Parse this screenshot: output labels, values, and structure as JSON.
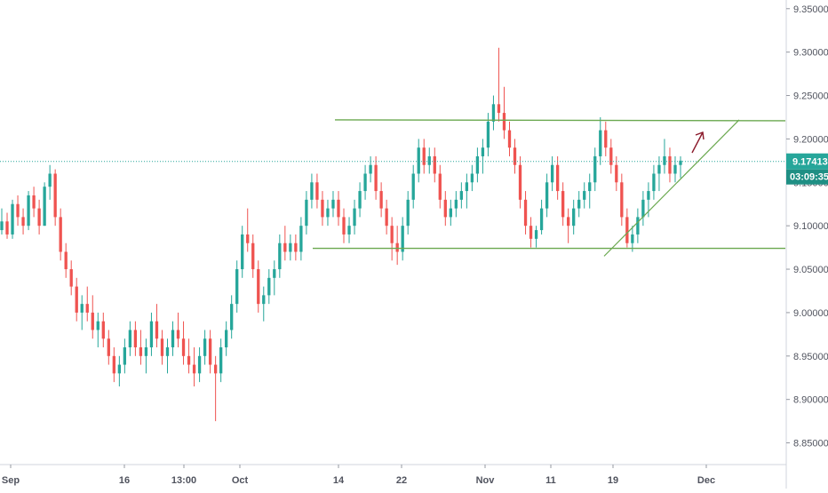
{
  "chart_data": {
    "type": "candlestick",
    "y_axis": {
      "position": "right",
      "range": [
        8.825,
        9.36
      ],
      "ticks": [
        "9.35000",
        "9.30000",
        "9.25000",
        "9.20000",
        "9.15000",
        "9.10000",
        "9.05000",
        "9.00000",
        "8.95000",
        "8.90000",
        "8.85000"
      ]
    },
    "x_axis": {
      "ticks": [
        "Sep",
        "16",
        "13:00",
        "Oct",
        "14",
        "22",
        "Nov",
        "11",
        "19",
        "Dec"
      ]
    },
    "current_price": {
      "value": 9.17413,
      "label": "9.17413",
      "countdown": "03:09:35"
    },
    "grid": false,
    "colors": {
      "up": "#26a69a",
      "down": "#ef5350",
      "resistance": "#6aa84f",
      "support": "#6aa84f",
      "trendline": "#6aa84f",
      "arrow": "#8b1a2b",
      "price_line": "#26a69a"
    },
    "annotations": {
      "resistance_level": 9.222,
      "support_level": 9.074,
      "rising_trendline": {
        "from_price": 9.065,
        "to_price": 9.222
      },
      "projection_arrow": "up"
    },
    "candles": [
      [
        9.095,
        9.12,
        9.09,
        9.105
      ],
      [
        9.105,
        9.115,
        9.085,
        9.09
      ],
      [
        9.09,
        9.13,
        9.085,
        9.125
      ],
      [
        9.125,
        9.135,
        9.1,
        9.11
      ],
      [
        9.11,
        9.12,
        9.09,
        9.1
      ],
      [
        9.1,
        9.14,
        9.095,
        9.135
      ],
      [
        9.135,
        9.145,
        9.11,
        9.12
      ],
      [
        9.12,
        9.13,
        9.09,
        9.1
      ],
      [
        9.1,
        9.15,
        9.1,
        9.145
      ],
      [
        9.145,
        9.17,
        9.13,
        9.16
      ],
      [
        9.16,
        9.165,
        9.1,
        9.11
      ],
      [
        9.11,
        9.12,
        9.06,
        9.07
      ],
      [
        9.07,
        9.08,
        9.04,
        9.05
      ],
      [
        9.05,
        9.06,
        9.02,
        9.03
      ],
      [
        9.03,
        9.04,
        8.99,
        9.0
      ],
      [
        9.0,
        9.02,
        8.98,
        9.01
      ],
      [
        9.01,
        9.03,
        8.99,
        9.0
      ],
      [
        9.0,
        9.02,
        8.97,
        8.98
      ],
      [
        8.98,
        9.0,
        8.96,
        8.99
      ],
      [
        8.99,
        9.0,
        8.96,
        8.97
      ],
      [
        8.97,
        8.98,
        8.94,
        8.95
      ],
      [
        8.95,
        8.96,
        8.92,
        8.93
      ],
      [
        8.93,
        8.95,
        8.915,
        8.94
      ],
      [
        8.94,
        8.97,
        8.93,
        8.96
      ],
      [
        8.96,
        8.99,
        8.95,
        8.98
      ],
      [
        8.98,
        8.99,
        8.95,
        8.96
      ],
      [
        8.96,
        8.98,
        8.94,
        8.95
      ],
      [
        8.95,
        8.97,
        8.93,
        8.96
      ],
      [
        8.96,
        9.0,
        8.95,
        8.99
      ],
      [
        8.99,
        9.01,
        8.96,
        8.97
      ],
      [
        8.97,
        8.98,
        8.94,
        8.95
      ],
      [
        8.95,
        8.97,
        8.93,
        8.96
      ],
      [
        8.96,
        8.99,
        8.95,
        8.98
      ],
      [
        8.98,
        9.0,
        8.96,
        8.97
      ],
      [
        8.97,
        8.99,
        8.94,
        8.95
      ],
      [
        8.95,
        8.97,
        8.93,
        8.94
      ],
      [
        8.94,
        8.96,
        8.915,
        8.93
      ],
      [
        8.93,
        8.96,
        8.92,
        8.95
      ],
      [
        8.95,
        8.98,
        8.94,
        8.97
      ],
      [
        8.97,
        8.98,
        8.93,
        8.94
      ],
      [
        8.94,
        8.95,
        8.875,
        8.93
      ],
      [
        8.93,
        8.97,
        8.92,
        8.96
      ],
      [
        8.96,
        8.99,
        8.95,
        8.98
      ],
      [
        8.98,
        9.02,
        8.97,
        9.01
      ],
      [
        9.01,
        9.06,
        9.0,
        9.05
      ],
      [
        9.05,
        9.1,
        9.04,
        9.09
      ],
      [
        9.09,
        9.12,
        9.07,
        9.08
      ],
      [
        9.08,
        9.09,
        9.04,
        9.05
      ],
      [
        9.05,
        9.06,
        9.0,
        9.01
      ],
      [
        9.01,
        9.03,
        8.99,
        9.02
      ],
      [
        9.02,
        9.05,
        9.01,
        9.04
      ],
      [
        9.04,
        9.06,
        9.02,
        9.05
      ],
      [
        9.05,
        9.09,
        9.04,
        9.08
      ],
      [
        9.08,
        9.1,
        9.06,
        9.07
      ],
      [
        9.07,
        9.09,
        9.06,
        9.08
      ],
      [
        9.08,
        9.09,
        9.06,
        9.07
      ],
      [
        9.07,
        9.11,
        9.06,
        9.1
      ],
      [
        9.1,
        9.14,
        9.09,
        9.13
      ],
      [
        9.13,
        9.16,
        9.12,
        9.15
      ],
      [
        9.15,
        9.16,
        9.12,
        9.13
      ],
      [
        9.13,
        9.14,
        9.1,
        9.11
      ],
      [
        9.11,
        9.13,
        9.1,
        9.12
      ],
      [
        9.12,
        9.14,
        9.11,
        9.13
      ],
      [
        9.13,
        9.14,
        9.1,
        9.11
      ],
      [
        9.11,
        9.12,
        9.08,
        9.09
      ],
      [
        9.09,
        9.11,
        9.08,
        9.1
      ],
      [
        9.1,
        9.13,
        9.09,
        9.12
      ],
      [
        9.12,
        9.15,
        9.11,
        9.14
      ],
      [
        9.14,
        9.17,
        9.13,
        9.16
      ],
      [
        9.16,
        9.18,
        9.15,
        9.17
      ],
      [
        9.17,
        9.18,
        9.13,
        9.14
      ],
      [
        9.14,
        9.15,
        9.11,
        9.12
      ],
      [
        9.12,
        9.13,
        9.09,
        9.1
      ],
      [
        9.1,
        9.11,
        9.06,
        9.08
      ],
      [
        9.08,
        9.1,
        9.055,
        9.07
      ],
      [
        9.07,
        9.11,
        9.06,
        9.1
      ],
      [
        9.1,
        9.14,
        9.09,
        9.13
      ],
      [
        9.13,
        9.17,
        9.12,
        9.16
      ],
      [
        9.16,
        9.2,
        9.15,
        9.19
      ],
      [
        9.19,
        9.2,
        9.16,
        9.17
      ],
      [
        9.17,
        9.19,
        9.16,
        9.18
      ],
      [
        9.18,
        9.19,
        9.15,
        9.16
      ],
      [
        9.16,
        9.17,
        9.12,
        9.13
      ],
      [
        9.13,
        9.14,
        9.1,
        9.11
      ],
      [
        9.11,
        9.13,
        9.1,
        9.12
      ],
      [
        9.12,
        9.14,
        9.11,
        9.13
      ],
      [
        9.13,
        9.15,
        9.12,
        9.14
      ],
      [
        9.14,
        9.16,
        9.12,
        9.15
      ],
      [
        9.15,
        9.17,
        9.14,
        9.16
      ],
      [
        9.16,
        9.19,
        9.15,
        9.18
      ],
      [
        9.18,
        9.2,
        9.16,
        9.19
      ],
      [
        9.19,
        9.23,
        9.18,
        9.22
      ],
      [
        9.22,
        9.25,
        9.21,
        9.24
      ],
      [
        9.24,
        9.305,
        9.22,
        9.23
      ],
      [
        9.23,
        9.26,
        9.2,
        9.21
      ],
      [
        9.21,
        9.22,
        9.18,
        9.19
      ],
      [
        9.19,
        9.2,
        9.16,
        9.17
      ],
      [
        9.17,
        9.18,
        9.12,
        9.13
      ],
      [
        9.13,
        9.14,
        9.09,
        9.1
      ],
      [
        9.1,
        9.11,
        9.075,
        9.085
      ],
      [
        9.085,
        9.1,
        9.075,
        9.095
      ],
      [
        9.095,
        9.13,
        9.09,
        9.12
      ],
      [
        9.12,
        9.16,
        9.11,
        9.15
      ],
      [
        9.15,
        9.18,
        9.14,
        9.17
      ],
      [
        9.17,
        9.18,
        9.13,
        9.14
      ],
      [
        9.14,
        9.15,
        9.1,
        9.11
      ],
      [
        9.11,
        9.12,
        9.08,
        9.1
      ],
      [
        9.1,
        9.13,
        9.09,
        9.12
      ],
      [
        9.12,
        9.14,
        9.11,
        9.13
      ],
      [
        9.13,
        9.15,
        9.12,
        9.14
      ],
      [
        9.14,
        9.16,
        9.12,
        9.15
      ],
      [
        9.15,
        9.19,
        9.14,
        9.18
      ],
      [
        9.18,
        9.225,
        9.17,
        9.21
      ],
      [
        9.21,
        9.22,
        9.18,
        9.19
      ],
      [
        9.19,
        9.2,
        9.16,
        9.17
      ],
      [
        9.17,
        9.18,
        9.14,
        9.15
      ],
      [
        9.15,
        9.16,
        9.1,
        9.11
      ],
      [
        9.11,
        9.12,
        9.075,
        9.08
      ],
      [
        9.08,
        9.1,
        9.07,
        9.09
      ],
      [
        9.09,
        9.12,
        9.08,
        9.11
      ],
      [
        9.11,
        9.14,
        9.1,
        9.13
      ],
      [
        9.13,
        9.15,
        9.11,
        9.14
      ],
      [
        9.14,
        9.17,
        9.13,
        9.16
      ],
      [
        9.16,
        9.18,
        9.14,
        9.17
      ],
      [
        9.17,
        9.2,
        9.16,
        9.18
      ],
      [
        9.18,
        9.19,
        9.15,
        9.16
      ],
      [
        9.16,
        9.18,
        9.15,
        9.17
      ],
      [
        9.17,
        9.18,
        9.155,
        9.175
      ]
    ]
  }
}
